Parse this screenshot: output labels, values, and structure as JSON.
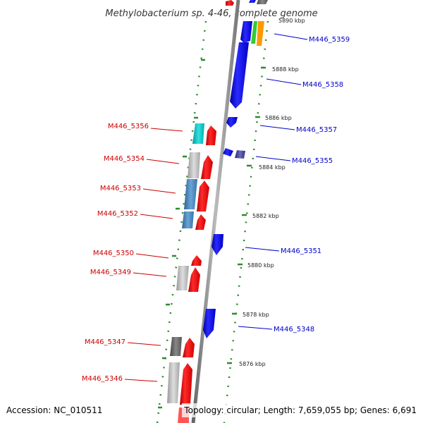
{
  "title": "Methylobacterium sp. 4-46, complete genome",
  "footer": {
    "accession": "Accession: NC_010511",
    "topology": "Topology: circular; Length: 7,659,055 bp; Genes: 6,691"
  },
  "colors": {
    "forward_gene": "#ff0000",
    "reverse_gene": "#0000ff",
    "left_label": "#cc0000",
    "right_label": "#0000cc",
    "backbone": "#888888",
    "dots": "#2e8b2e"
  },
  "kbp_labels": [
    "5890 kbp",
    "5888 kbp",
    "5886 kbp",
    "5884 kbp",
    "5882 kbp",
    "5880 kbp",
    "5878 kbp",
    "5876 kbp"
  ],
  "genes_left": [
    {
      "label": "M446_5356"
    },
    {
      "label": "M446_5354"
    },
    {
      "label": "M446_5353"
    },
    {
      "label": "M446_5352"
    },
    {
      "label": "M446_5350"
    },
    {
      "label": "M446_5349"
    },
    {
      "label": "M446_5347"
    },
    {
      "label": "M446_5346"
    }
  ],
  "genes_right": [
    {
      "label": "M446_5359"
    },
    {
      "label": "M446_5358"
    },
    {
      "label": "M446_5357"
    },
    {
      "label": "M446_5355"
    },
    {
      "label": "M446_5351"
    },
    {
      "label": "M446_5348"
    }
  ]
}
